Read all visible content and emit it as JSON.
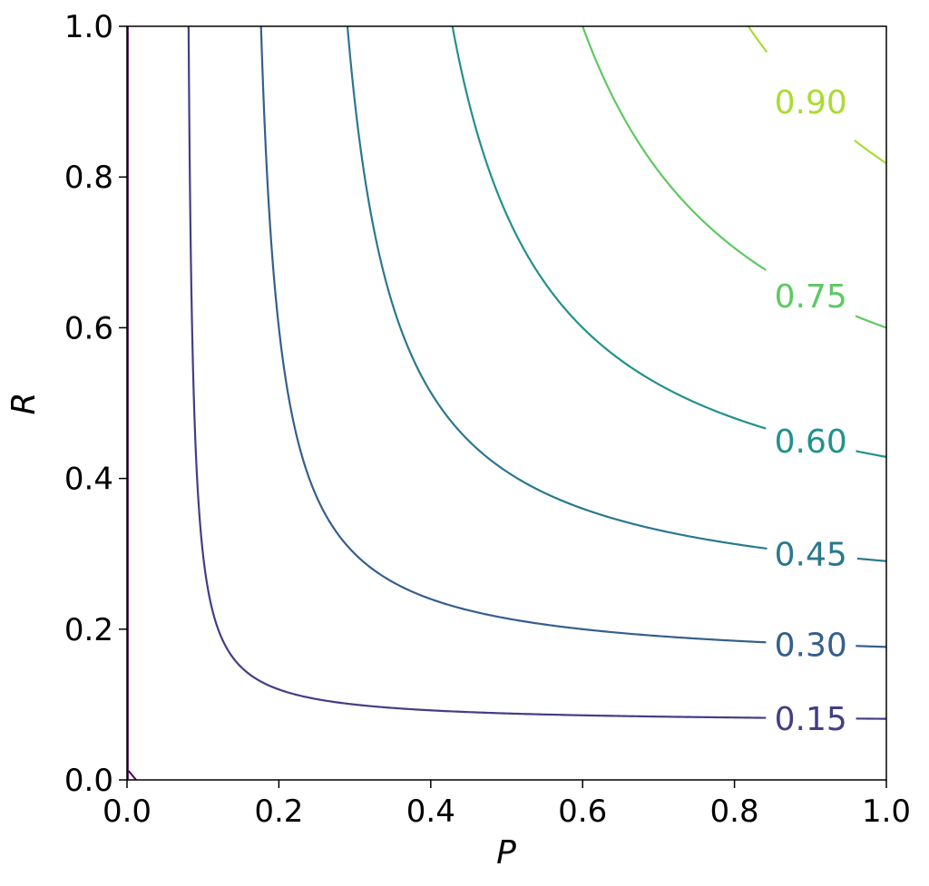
{
  "chart_data": {
    "type": "line",
    "title": "",
    "xlabel": "P",
    "ylabel": "R",
    "xlim": [
      0.0,
      1.0
    ],
    "ylim": [
      0.0,
      1.0
    ],
    "grid": false,
    "x_ticks": [
      "0.0",
      "0.2",
      "0.4",
      "0.6",
      "0.8",
      "1.0"
    ],
    "y_ticks": [
      "0.0",
      "0.2",
      "0.4",
      "0.6",
      "0.8",
      "1.0"
    ],
    "description": "Contour lines of F1 score = 2PR/(P+R) over precision P and recall R",
    "levels": [
      {
        "label": "0.15",
        "value": 0.15,
        "color": "#433e85"
      },
      {
        "label": "0.30",
        "value": 0.3,
        "color": "#355f8d"
      },
      {
        "label": "0.45",
        "value": 0.45,
        "color": "#2a788e"
      },
      {
        "label": "0.60",
        "value": 0.6,
        "color": "#21918c"
      },
      {
        "label": "0.75",
        "value": 0.75,
        "color": "#5ec962"
      },
      {
        "label": "0.90",
        "value": 0.9,
        "color": "#aadc32"
      }
    ],
    "extra_contour_color": "#440154"
  }
}
